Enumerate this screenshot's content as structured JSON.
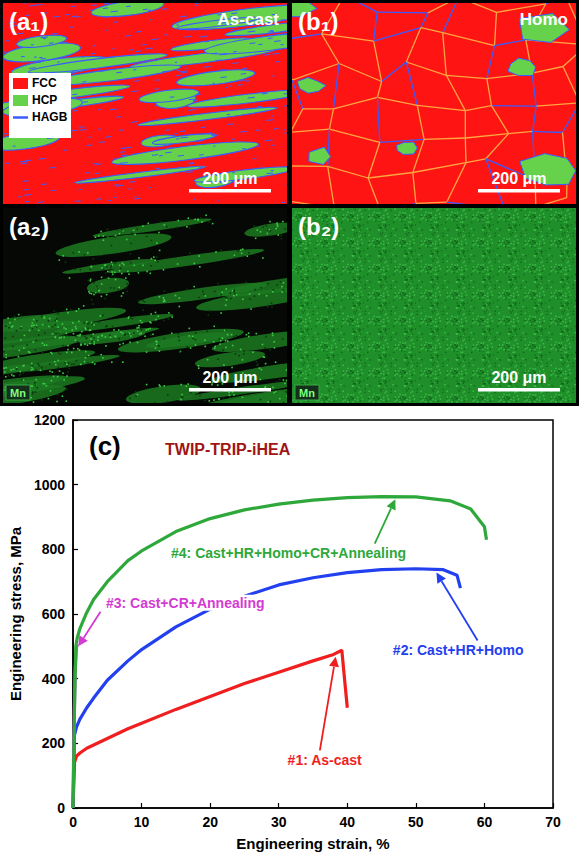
{
  "panels": [
    {
      "label": "(a₁)",
      "caption": "As-cast",
      "scale_bar": "200 μm",
      "legend": [
        {
          "name": "FCC",
          "color": "#ff1414"
        },
        {
          "name": "HCP",
          "color": "#66d14a"
        },
        {
          "name": "HAGB",
          "color": "#3a5cff"
        }
      ]
    },
    {
      "label": "(b₁)",
      "caption": "Homo",
      "scale_bar": "200 μm"
    },
    {
      "label": "(a₂)",
      "element": "Mn",
      "scale_bar": "200 μm"
    },
    {
      "label": "(b₂)",
      "element": "Mn",
      "scale_bar": "200 μm"
    }
  ],
  "chart_data": {
    "type": "line",
    "title": "(c)",
    "subtitle": "TWIP-TRIP-iHEA",
    "x_label": "Engineering strain, %",
    "y_label": "Engineering stress, MPa",
    "xlim": [
      0,
      70
    ],
    "xticks": [
      0,
      10,
      20,
      30,
      40,
      50,
      60,
      70
    ],
    "ylim": [
      0,
      1200
    ],
    "yticks": [
      0,
      200,
      400,
      600,
      800,
      1000,
      1200
    ],
    "grid": false,
    "series": [
      {
        "name": "#1: As-cast",
        "color": "#f01e1e",
        "x": [
          0,
          0.2,
          0.5,
          1,
          2,
          3,
          5,
          8,
          10,
          15,
          20,
          25,
          30,
          35,
          38,
          39.2,
          39.5,
          40
        ],
        "values": [
          0,
          140,
          160,
          170,
          185,
          195,
          215,
          245,
          262,
          305,
          345,
          385,
          420,
          455,
          475,
          488,
          420,
          310
        ]
      },
      {
        "name": "#2: Cast+HR+Homo",
        "color": "#2340f0",
        "x": [
          0,
          0.2,
          0.5,
          1,
          2,
          3,
          5,
          8,
          10,
          15,
          20,
          25,
          30,
          35,
          40,
          45,
          50,
          54,
          56,
          56.5
        ],
        "values": [
          0,
          225,
          250,
          275,
          310,
          340,
          395,
          455,
          490,
          560,
          615,
          655,
          690,
          712,
          728,
          737,
          740,
          737,
          720,
          680
        ]
      },
      {
        "name": "#3: Cast+CR+Annealing",
        "color": "#d23cd2",
        "x": [
          0,
          0.1,
          0.3,
          0.5,
          0.6
        ],
        "values": [
          0,
          200,
          420,
          495,
          505
        ]
      },
      {
        "name": "#4: Cast+HR+Homo+CR+Annealing",
        "color": "#2ea83a",
        "x": [
          0,
          0.2,
          0.4,
          0.6,
          1,
          2,
          3,
          5,
          8,
          10,
          15,
          20,
          25,
          30,
          35,
          40,
          45,
          50,
          55,
          58,
          60,
          60.3
        ],
        "values": [
          0,
          300,
          500,
          525,
          555,
          605,
          645,
          700,
          765,
          795,
          855,
          895,
          922,
          940,
          952,
          960,
          963,
          962,
          950,
          925,
          870,
          830
        ]
      }
    ]
  }
}
